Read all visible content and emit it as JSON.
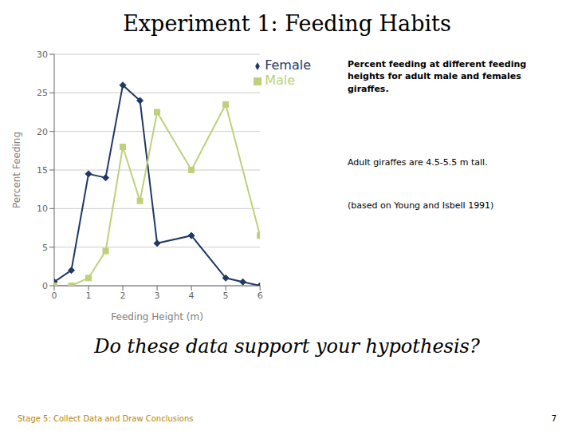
{
  "chart_data": {
    "type": "line",
    "title": "Experiment 1: Feeding Habits",
    "xlabel": "Feeding Height (m)",
    "ylabel": "Percent Feeding",
    "series": [
      {
        "name": "Female",
        "color": "#1F3864",
        "marker": "diamond",
        "x": [
          0,
          0.5,
          1,
          1.5,
          2,
          2.5,
          3,
          4,
          5,
          5.5,
          6
        ],
        "values": [
          0.5,
          2,
          14.5,
          14,
          26,
          24,
          5.5,
          6.5,
          1,
          0.5,
          0
        ]
      },
      {
        "name": "Male",
        "color": "#BDD17A",
        "marker": "square",
        "x": [
          0,
          0.5,
          1,
          1.5,
          2,
          2.5,
          3,
          4,
          5,
          6
        ],
        "values": [
          0,
          0,
          1,
          4.5,
          18,
          11,
          22.5,
          15,
          23.5,
          6.5
        ]
      }
    ],
    "xlim": [
      0,
      6
    ],
    "ylim": [
      0,
      30
    ],
    "xticks": [
      0,
      1,
      2,
      3,
      4,
      5,
      6
    ],
    "yticks": [
      0,
      5,
      10,
      15,
      20,
      25,
      30
    ],
    "grid": "y",
    "legend": "upper right",
    "annotations": [
      {
        "text": "Percent feeding at different feeding\nheights for adult male and females\ngiraffes."
      },
      {
        "text": "Adult giraffes are 4.5-5.5 m tall."
      },
      {
        "text": "(based on Young and Isbell 1991)"
      },
      {
        "text": "Do these data support your hypothesis?"
      },
      {
        "text": "Stage 5: Collect Data and Draw Conclusions",
        "color": "#B8860B"
      },
      {
        "text": "7"
      }
    ]
  }
}
